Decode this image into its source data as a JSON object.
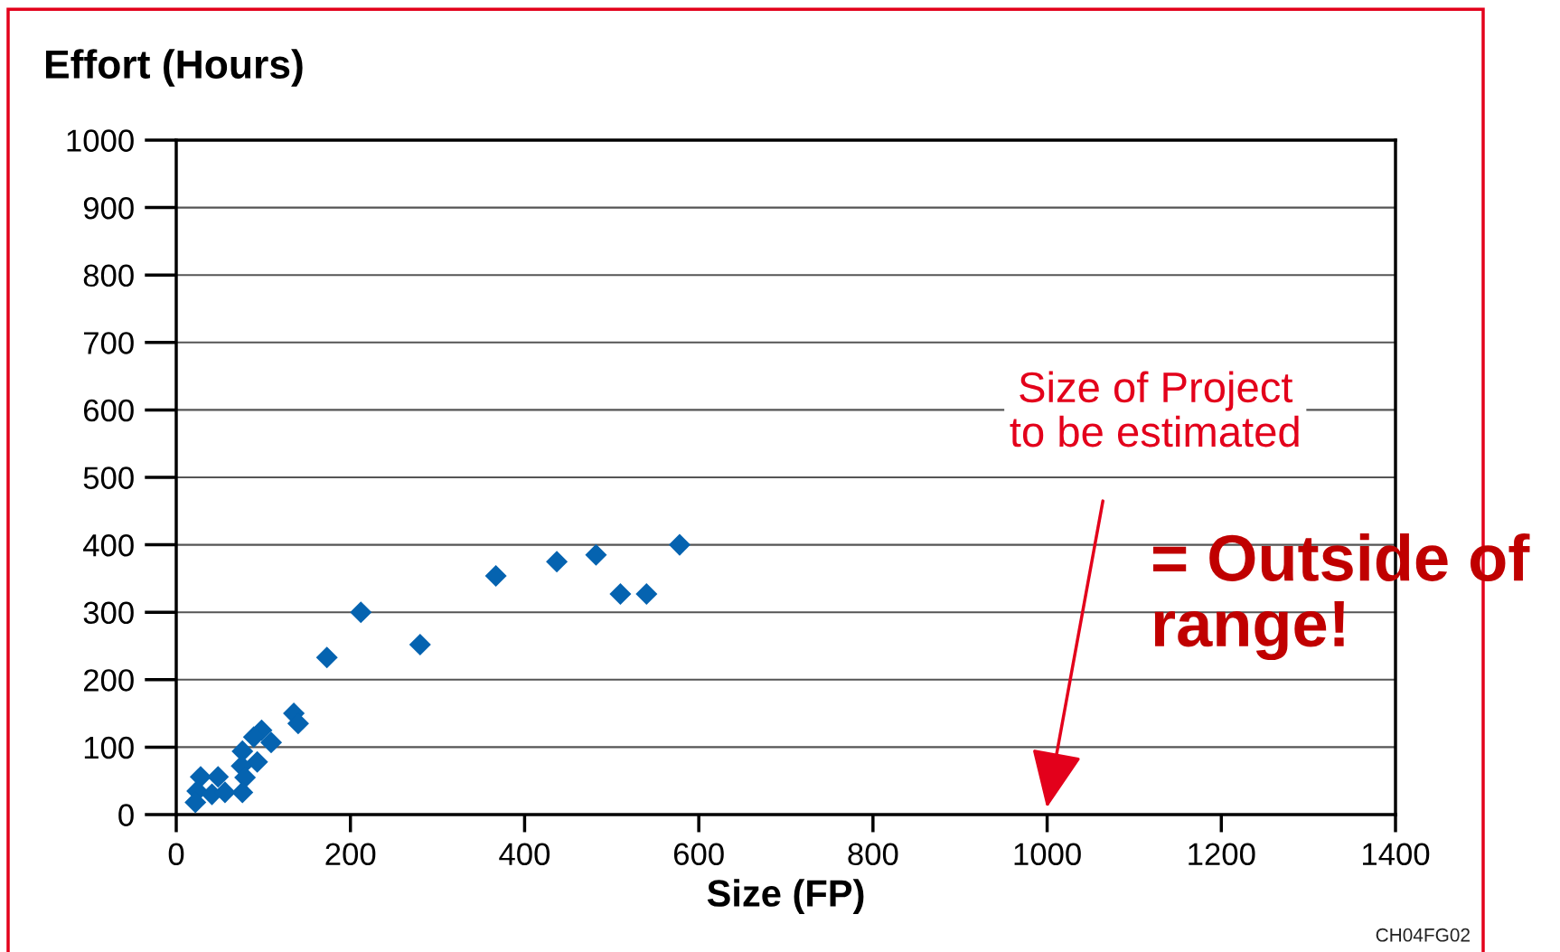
{
  "chart_data": {
    "type": "scatter",
    "ylabel": "Effort (Hours)",
    "xlabel": "Size (FP)",
    "x": [
      578,
      482,
      437,
      367,
      510,
      540,
      212,
      280,
      173,
      135,
      140,
      98,
      109,
      89,
      76,
      93,
      75,
      79,
      76,
      28,
      48,
      24,
      41,
      56,
      22
    ],
    "series": [
      {
        "color": "#0563b0",
        "values": [
          400,
          385,
          375,
          354,
          327,
          327,
          300,
          252,
          233,
          150,
          135,
          125,
          107,
          115,
          94,
          78,
          72,
          55,
          33,
          56,
          56,
          35,
          30,
          33,
          18
        ]
      }
    ],
    "marker": "diamond",
    "grid": "y",
    "xlim": [
      0,
      1400
    ],
    "xticks": [
      0,
      200,
      400,
      600,
      800,
      1000,
      1200,
      1400
    ],
    "ylim": [
      0,
      1000
    ],
    "yticks": [
      0,
      100,
      200,
      300,
      400,
      500,
      600,
      700,
      800,
      900,
      1000
    ],
    "annotations": [
      "Size of Project\nto be estimated",
      "= Outside of\nrange!",
      "CH04FG02"
    ]
  }
}
